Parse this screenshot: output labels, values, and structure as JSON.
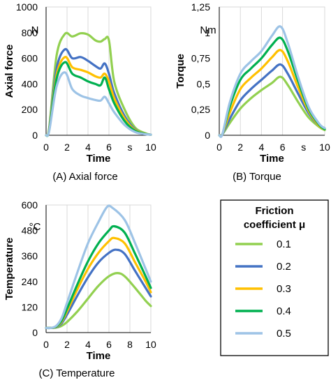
{
  "colors": {
    "mu_0_1": "#92d050",
    "mu_0_2": "#4472c4",
    "mu_0_3": "#ffc000",
    "mu_0_4": "#00b050",
    "mu_0_5": "#9dc3e6",
    "gridline": "#d9d9d9",
    "axis": "#000000"
  },
  "legend": {
    "title_line1": "Friction",
    "title_line2": "coefficient μ",
    "items": [
      "0.1",
      "0.2",
      "0.3",
      "0.4",
      "0.5"
    ]
  },
  "chart_data": [
    {
      "type": "line",
      "caption": "(A) Axial force",
      "xlabel": "Time",
      "x_unit": "s",
      "ylabel": "Axial force",
      "y_unit": "N",
      "xlim": [
        0,
        10
      ],
      "ylim": [
        0,
        1000
      ],
      "xticks": [
        "0",
        "2",
        "4",
        "6",
        "10"
      ],
      "yticks": [
        "0",
        "200",
        "400",
        "600",
        "800",
        "1000"
      ],
      "grid": "vertical",
      "series": [
        {
          "name": "0.1",
          "x": [
            0,
            0.3,
            1,
            1.8,
            2.5,
            3.3,
            4,
            4.7,
            5.2,
            5.6,
            6,
            6.5,
            7.5,
            8.5,
            9.5,
            10
          ],
          "y": [
            0,
            60,
            620,
            790,
            770,
            795,
            785,
            740,
            730,
            750,
            740,
            420,
            200,
            60,
            15,
            5
          ]
        },
        {
          "name": "0.2",
          "x": [
            0,
            0.3,
            1,
            1.8,
            2.5,
            3.3,
            4,
            4.7,
            5.2,
            5.6,
            6,
            6.5,
            7.5,
            8.5,
            9.5,
            10
          ],
          "y": [
            0,
            50,
            520,
            670,
            600,
            610,
            580,
            540,
            520,
            560,
            480,
            330,
            150,
            45,
            10,
            5
          ]
        },
        {
          "name": "0.3",
          "x": [
            0,
            0.3,
            1,
            1.8,
            2.5,
            3.3,
            4,
            4.7,
            5.2,
            5.6,
            6,
            6.5,
            7.5,
            8.5,
            9.5,
            10
          ],
          "y": [
            0,
            45,
            470,
            610,
            530,
            510,
            490,
            460,
            450,
            480,
            420,
            290,
            130,
            40,
            10,
            5
          ]
        },
        {
          "name": "0.4",
          "x": [
            0,
            0.3,
            1,
            1.8,
            2.5,
            3.3,
            4,
            4.7,
            5.2,
            5.6,
            6,
            6.5,
            7.5,
            8.5,
            9.5,
            10
          ],
          "y": [
            0,
            40,
            440,
            570,
            480,
            450,
            420,
            400,
            390,
            450,
            360,
            250,
            110,
            35,
            10,
            5
          ]
        },
        {
          "name": "0.5",
          "x": [
            0,
            0.3,
            1,
            1.8,
            2.5,
            3.3,
            4,
            4.7,
            5.2,
            5.6,
            6,
            6.5,
            7.5,
            8.5,
            9.5,
            10
          ],
          "y": [
            0,
            35,
            380,
            490,
            360,
            310,
            290,
            275,
            270,
            300,
            250,
            180,
            80,
            25,
            8,
            5
          ]
        }
      ]
    },
    {
      "type": "line",
      "caption": "(B) Torque",
      "xlabel": "Time",
      "x_unit": "s",
      "ylabel": "Torque",
      "y_unit": "Nm",
      "xlim": [
        0,
        10
      ],
      "ylim": [
        0,
        1.25
      ],
      "xticks": [
        "0",
        "2",
        "4",
        "6",
        "10"
      ],
      "yticks": [
        "0",
        "0,25",
        "0,5",
        "0,75",
        "1",
        "1,25"
      ],
      "grid": "vertical",
      "series": [
        {
          "name": "0.1",
          "x": [
            0,
            0.3,
            1,
            2,
            3,
            4,
            5,
            5.8,
            6.5,
            7.5,
            8.5,
            9.5,
            10
          ],
          "y": [
            0,
            0.01,
            0.12,
            0.26,
            0.36,
            0.44,
            0.51,
            0.57,
            0.49,
            0.32,
            0.17,
            0.08,
            0.05
          ]
        },
        {
          "name": "0.2",
          "x": [
            0,
            0.3,
            1,
            2,
            3,
            4,
            5,
            5.8,
            6.5,
            7.5,
            8.5,
            9.5,
            10
          ],
          "y": [
            0,
            0.01,
            0.16,
            0.34,
            0.45,
            0.54,
            0.63,
            0.69,
            0.6,
            0.4,
            0.21,
            0.09,
            0.06
          ]
        },
        {
          "name": "0.3",
          "x": [
            0,
            0.3,
            1,
            2,
            3,
            4,
            5,
            5.8,
            6.5,
            7.5,
            8.5,
            9.5,
            10
          ],
          "y": [
            0,
            0.01,
            0.22,
            0.45,
            0.56,
            0.65,
            0.76,
            0.83,
            0.72,
            0.46,
            0.23,
            0.09,
            0.06
          ]
        },
        {
          "name": "0.4",
          "x": [
            0,
            0.3,
            1,
            2,
            3,
            4,
            5,
            5.8,
            6.5,
            7.5,
            8.5,
            9.5,
            10
          ],
          "y": [
            0,
            0.01,
            0.28,
            0.54,
            0.65,
            0.75,
            0.88,
            0.95,
            0.82,
            0.52,
            0.25,
            0.1,
            0.06
          ]
        },
        {
          "name": "0.5",
          "x": [
            0,
            0.3,
            1,
            2,
            3,
            4,
            5,
            5.8,
            6.5,
            7.5,
            8.5,
            9.5,
            10
          ],
          "y": [
            0,
            0.01,
            0.32,
            0.6,
            0.72,
            0.82,
            0.97,
            1.06,
            0.9,
            0.56,
            0.27,
            0.11,
            0.07
          ]
        }
      ]
    },
    {
      "type": "line",
      "caption": "(C) Temperature",
      "xlabel": "Time",
      "x_unit": "s",
      "ylabel": "Temperature",
      "y_unit": "°C",
      "xlim": [
        0,
        10
      ],
      "ylim": [
        0,
        600
      ],
      "xticks": [
        "0",
        "2",
        "4",
        "6",
        "8",
        "10"
      ],
      "yticks": [
        "0",
        "120",
        "240",
        "360",
        "480",
        "600"
      ],
      "grid": "vertical",
      "series": [
        {
          "name": "0.1",
          "x": [
            0,
            0.5,
            1,
            1.5,
            2,
            3,
            4,
            5,
            6,
            6.8,
            7.5,
            8.5,
            9.5,
            10
          ],
          "y": [
            22,
            22,
            24,
            32,
            50,
            100,
            160,
            220,
            265,
            280,
            265,
            210,
            150,
            125
          ]
        },
        {
          "name": "0.2",
          "x": [
            0,
            0.5,
            1,
            1.5,
            2,
            3,
            4,
            5,
            6,
            6.7,
            7.5,
            8.5,
            9.5,
            10
          ],
          "y": [
            22,
            22,
            26,
            45,
            85,
            175,
            260,
            330,
            375,
            390,
            370,
            290,
            210,
            170
          ]
        },
        {
          "name": "0.3",
          "x": [
            0,
            0.5,
            1,
            1.5,
            2,
            3,
            4,
            5,
            6,
            6.5,
            7.5,
            8.5,
            9.5,
            10
          ],
          "y": [
            22,
            22,
            28,
            52,
            100,
            205,
            300,
            375,
            430,
            445,
            420,
            330,
            240,
            190
          ]
        },
        {
          "name": "0.4",
          "x": [
            0,
            0.5,
            1,
            1.5,
            2,
            3,
            4,
            5,
            6,
            6.5,
            7.5,
            8.5,
            9.5,
            10
          ],
          "y": [
            22,
            22,
            30,
            58,
            112,
            228,
            335,
            420,
            480,
            500,
            470,
            370,
            265,
            210
          ]
        },
        {
          "name": "0.5",
          "x": [
            0,
            0.5,
            1,
            1.5,
            2,
            3,
            4,
            5,
            5.8,
            6.3,
            7.5,
            8.5,
            9.5,
            10
          ],
          "y": [
            22,
            22,
            33,
            70,
            140,
            285,
            420,
            520,
            590,
            588,
            530,
            420,
            300,
            240
          ]
        }
      ]
    }
  ]
}
